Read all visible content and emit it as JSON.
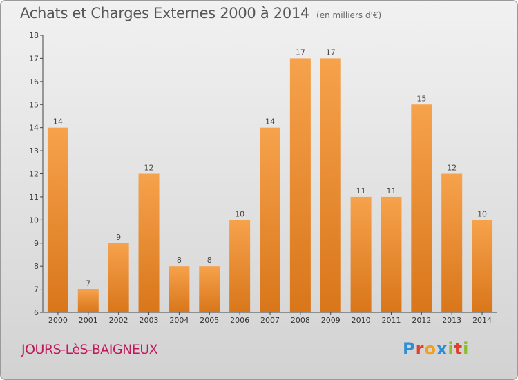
{
  "title": "Achats et Charges Externes 2000 à 2014",
  "subtitle": "(en milliers d'€)",
  "town": "JOURS-LèS-BAIGNEUX",
  "logo": "Proxiti",
  "colors": {
    "bar_top": "#f6a24c",
    "bar_bottom": "#d9761a",
    "town": "#c2185b"
  },
  "chart_data": {
    "type": "bar",
    "title": "Achats et Charges Externes 2000 à 2014",
    "categories": [
      "2000",
      "2001",
      "2002",
      "2003",
      "2004",
      "2005",
      "2006",
      "2007",
      "2008",
      "2009",
      "2010",
      "2011",
      "2012",
      "2013",
      "2014"
    ],
    "values": [
      14,
      7,
      9,
      12,
      8,
      8,
      10,
      14,
      17,
      17,
      11,
      11,
      15,
      12,
      10
    ],
    "ylim": [
      6,
      18
    ],
    "yticks": [
      6,
      7,
      8,
      9,
      10,
      11,
      12,
      13,
      14,
      15,
      16,
      17,
      18
    ],
    "grid": false
  }
}
